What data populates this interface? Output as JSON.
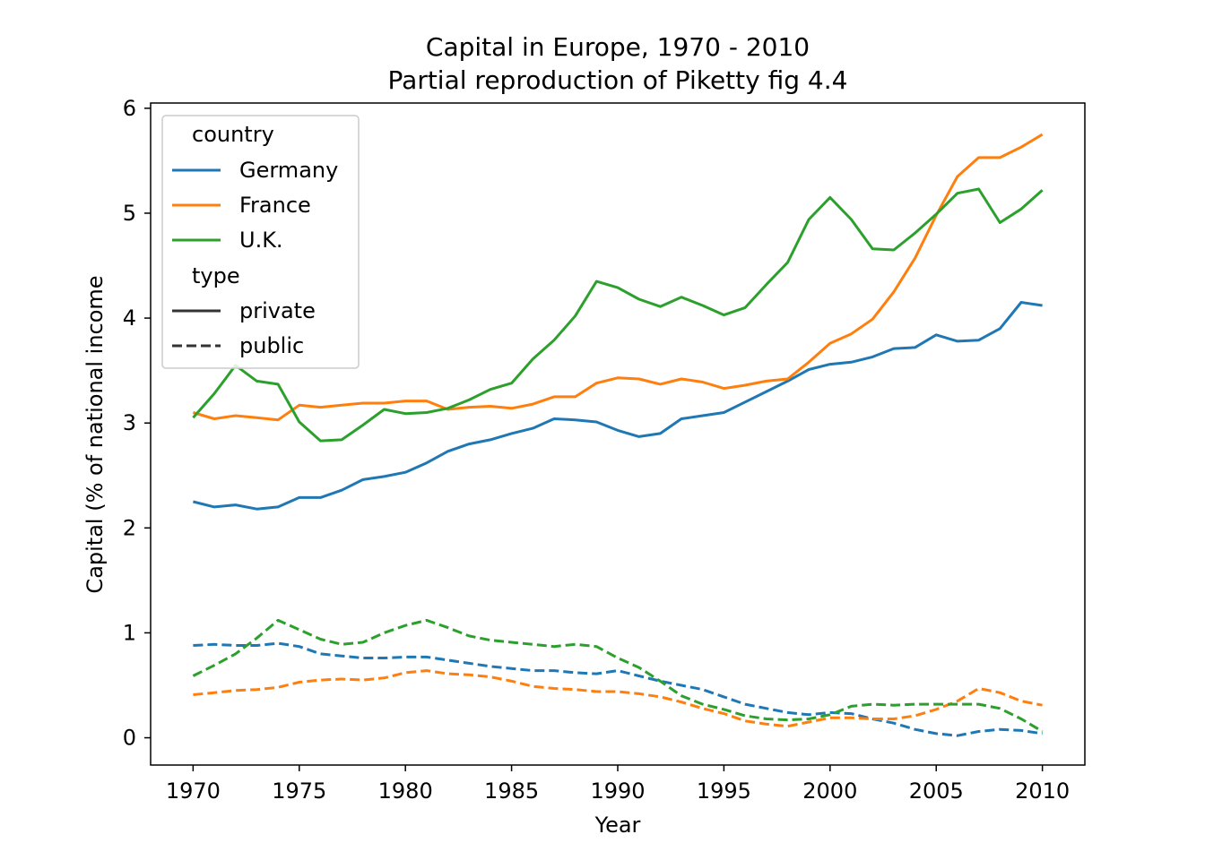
{
  "colors": {
    "Germany": "#1f77b4",
    "France": "#ff7f0e",
    "U.K.": "#2ca02c",
    "legend_type_line": "#333333"
  },
  "chart_data": {
    "type": "line",
    "title": "Capital in Europe, 1970 - 2010",
    "subtitle": "Partial reproduction of Piketty fig 4.4",
    "xlabel": "Year",
    "ylabel": "Capital (% of national income",
    "xlim": [
      1968,
      2012
    ],
    "ylim": [
      -0.26,
      6.05
    ],
    "xticks": [
      "1970",
      "1975",
      "1980",
      "1985",
      "1990",
      "1995",
      "2000",
      "2005",
      "2010"
    ],
    "yticks": [
      "0",
      "1",
      "2",
      "3",
      "4",
      "5",
      "6"
    ],
    "grid": false,
    "legend": {
      "position": "top-left",
      "group1_title": "country",
      "group1_items": [
        "Germany",
        "France",
        "U.K."
      ],
      "group2_title": "type",
      "group2_items": [
        "private",
        "public"
      ]
    },
    "x": [
      1970,
      1971,
      1972,
      1973,
      1974,
      1975,
      1976,
      1977,
      1978,
      1979,
      1980,
      1981,
      1982,
      1983,
      1984,
      1985,
      1986,
      1987,
      1988,
      1989,
      1990,
      1991,
      1992,
      1993,
      1994,
      1995,
      1996,
      1997,
      1998,
      1999,
      2000,
      2001,
      2002,
      2003,
      2004,
      2005,
      2006,
      2007,
      2008,
      2009,
      2010
    ],
    "series": [
      {
        "country": "Germany",
        "type": "private",
        "values": [
          2.25,
          2.2,
          2.22,
          2.18,
          2.2,
          2.29,
          2.29,
          2.36,
          2.46,
          2.49,
          2.53,
          2.62,
          2.73,
          2.8,
          2.84,
          2.9,
          2.95,
          3.04,
          3.03,
          3.01,
          2.93,
          2.87,
          2.9,
          3.04,
          3.07,
          3.1,
          3.2,
          3.3,
          3.4,
          3.51,
          3.56,
          3.58,
          3.63,
          3.71,
          3.72,
          3.84,
          3.78,
          3.79,
          3.9,
          4.15,
          4.12
        ]
      },
      {
        "country": "France",
        "type": "private",
        "values": [
          3.1,
          3.04,
          3.07,
          3.05,
          3.03,
          3.17,
          3.15,
          3.17,
          3.19,
          3.19,
          3.21,
          3.21,
          3.13,
          3.15,
          3.16,
          3.14,
          3.18,
          3.25,
          3.25,
          3.38,
          3.43,
          3.42,
          3.37,
          3.42,
          3.39,
          3.33,
          3.36,
          3.4,
          3.42,
          3.58,
          3.76,
          3.85,
          3.99,
          4.25,
          4.57,
          4.98,
          5.35,
          5.53,
          5.53,
          5.63,
          5.75
        ]
      },
      {
        "country": "U.K.",
        "type": "private",
        "values": [
          3.05,
          3.28,
          3.55,
          3.4,
          3.37,
          3.01,
          2.83,
          2.84,
          2.98,
          3.13,
          3.09,
          3.1,
          3.14,
          3.22,
          3.32,
          3.38,
          3.61,
          3.79,
          4.02,
          4.35,
          4.29,
          4.18,
          4.11,
          4.2,
          4.12,
          4.03,
          4.1,
          4.32,
          4.53,
          4.94,
          5.15,
          4.94,
          4.66,
          4.65,
          4.81,
          4.99,
          5.19,
          5.23,
          4.91,
          5.04,
          5.22
        ]
      },
      {
        "country": "Germany",
        "type": "public",
        "values": [
          0.88,
          0.89,
          0.88,
          0.88,
          0.9,
          0.87,
          0.8,
          0.78,
          0.76,
          0.76,
          0.77,
          0.77,
          0.74,
          0.71,
          0.68,
          0.66,
          0.64,
          0.64,
          0.62,
          0.61,
          0.64,
          0.59,
          0.54,
          0.5,
          0.46,
          0.39,
          0.32,
          0.28,
          0.24,
          0.22,
          0.24,
          0.23,
          0.18,
          0.14,
          0.08,
          0.04,
          0.02,
          0.06,
          0.08,
          0.07,
          0.04
        ]
      },
      {
        "country": "France",
        "type": "public",
        "values": [
          0.41,
          0.43,
          0.45,
          0.46,
          0.48,
          0.53,
          0.55,
          0.56,
          0.55,
          0.57,
          0.62,
          0.64,
          0.61,
          0.6,
          0.58,
          0.54,
          0.49,
          0.47,
          0.46,
          0.44,
          0.44,
          0.42,
          0.39,
          0.34,
          0.28,
          0.23,
          0.16,
          0.13,
          0.11,
          0.15,
          0.19,
          0.19,
          0.18,
          0.18,
          0.21,
          0.27,
          0.35,
          0.47,
          0.43,
          0.35,
          0.31
        ]
      },
      {
        "country": "U.K.",
        "type": "public",
        "values": [
          0.59,
          0.69,
          0.8,
          0.95,
          1.12,
          1.03,
          0.94,
          0.89,
          0.91,
          1.0,
          1.07,
          1.12,
          1.05,
          0.97,
          0.93,
          0.91,
          0.89,
          0.87,
          0.89,
          0.87,
          0.76,
          0.67,
          0.54,
          0.4,
          0.32,
          0.27,
          0.21,
          0.18,
          0.17,
          0.18,
          0.22,
          0.3,
          0.32,
          0.31,
          0.32,
          0.32,
          0.32,
          0.32,
          0.28,
          0.18,
          0.06
        ]
      }
    ]
  }
}
